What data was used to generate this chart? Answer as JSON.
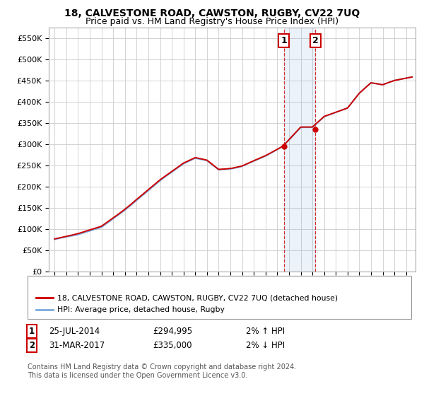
{
  "title": "18, CALVESTONE ROAD, CAWSTON, RUGBY, CV22 7UQ",
  "subtitle": "Price paid vs. HM Land Registry's House Price Index (HPI)",
  "legend_line1": "18, CALVESTONE ROAD, CAWSTON, RUGBY, CV22 7UQ (detached house)",
  "legend_line2": "HPI: Average price, detached house, Rugby",
  "annotation1_label": "1",
  "annotation1_date": "25-JUL-2014",
  "annotation1_price": "£294,995",
  "annotation1_hpi": "2% ↑ HPI",
  "annotation2_label": "2",
  "annotation2_date": "31-MAR-2017",
  "annotation2_price": "£335,000",
  "annotation2_hpi": "2% ↓ HPI",
  "footer": "Contains HM Land Registry data © Crown copyright and database right 2024.\nThis data is licensed under the Open Government Licence v3.0.",
  "house_color": "#cc0000",
  "hpi_color": "#7aaadd",
  "sale1_t": 2014.57,
  "sale1_price": 294995,
  "sale2_t": 2017.25,
  "sale2_price": 335000,
  "ylim_min": 0,
  "ylim_max": 575000,
  "xlim_min": 1994.5,
  "xlim_max": 2025.8,
  "background_color": "#ffffff",
  "grid_color": "#cccccc"
}
